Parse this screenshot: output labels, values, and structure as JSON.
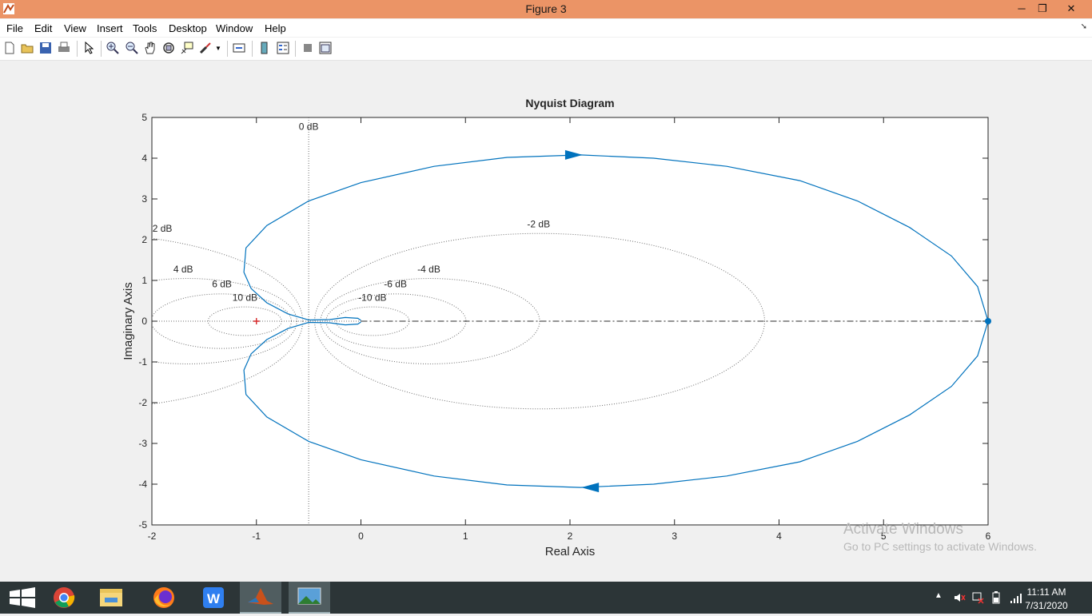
{
  "window": {
    "title": "Figure 3",
    "minimize_glyph": "─",
    "maximize_glyph": "❐",
    "close_glyph": "✕"
  },
  "menu": [
    "File",
    "Edit",
    "View",
    "Insert",
    "Tools",
    "Desktop",
    "Window",
    "Help"
  ],
  "toolbar_icons": [
    "new-figure-icon",
    "open-file-icon",
    "save-icon",
    "print-icon",
    "edit-plot-icon",
    "zoom-in-icon",
    "zoom-out-icon",
    "pan-icon",
    "rotate-3d-icon",
    "data-cursor-icon",
    "brush-icon",
    "link-plot-icon",
    "insert-colorbar-icon",
    "insert-legend-icon",
    "hide-plot-tools-icon",
    "show-plot-tools-icon"
  ],
  "chart_data": {
    "type": "line",
    "title": "Nyquist Diagram",
    "xlabel": "Real Axis",
    "ylabel": "Imaginary Axis",
    "xlim": [
      -2,
      6
    ],
    "ylim": [
      -5,
      5
    ],
    "xticks": [
      -2,
      -1,
      0,
      1,
      2,
      3,
      4,
      5,
      6
    ],
    "yticks": [
      -5,
      -4,
      -3,
      -2,
      -1,
      0,
      1,
      2,
      3,
      4,
      5
    ],
    "grid": "M-circles",
    "critical_point": [
      -1,
      0
    ],
    "series": [
      {
        "color": "#0072bd",
        "points_upper": [
          [
            6,
            0
          ],
          [
            5.9,
            0.85
          ],
          [
            5.65,
            1.6
          ],
          [
            5.25,
            2.3
          ],
          [
            4.75,
            2.95
          ],
          [
            4.2,
            3.45
          ],
          [
            3.5,
            3.8
          ],
          [
            2.8,
            4.0
          ],
          [
            2.1,
            4.08
          ],
          [
            1.4,
            4.02
          ],
          [
            0.7,
            3.8
          ],
          [
            0,
            3.4
          ],
          [
            -0.5,
            2.95
          ],
          [
            -0.9,
            2.35
          ],
          [
            -1.1,
            1.8
          ],
          [
            -1.12,
            1.2
          ],
          [
            -1.05,
            0.8
          ],
          [
            -0.9,
            0.45
          ],
          [
            -0.7,
            0.18
          ],
          [
            -0.5,
            0.03
          ],
          [
            -0.3,
            0.04
          ],
          [
            -0.15,
            0.09
          ],
          [
            -0.03,
            0.07
          ],
          [
            0,
            0.02
          ]
        ],
        "points_lower": [
          [
            6,
            0
          ],
          [
            5.9,
            -0.85
          ],
          [
            5.65,
            -1.6
          ],
          [
            5.25,
            -2.3
          ],
          [
            4.75,
            -2.95
          ],
          [
            4.2,
            -3.45
          ],
          [
            3.5,
            -3.8
          ],
          [
            2.8,
            -4.0
          ],
          [
            2.1,
            -4.08
          ],
          [
            1.4,
            -4.02
          ],
          [
            0.7,
            -3.8
          ],
          [
            0,
            -3.4
          ],
          [
            -0.5,
            -2.95
          ],
          [
            -0.9,
            -2.35
          ],
          [
            -1.1,
            -1.8
          ],
          [
            -1.12,
            -1.2
          ],
          [
            -1.05,
            -0.8
          ],
          [
            -0.9,
            -0.45
          ],
          [
            -0.7,
            -0.18
          ],
          [
            -0.5,
            -0.03
          ],
          [
            -0.3,
            -0.04
          ],
          [
            -0.15,
            -0.09
          ],
          [
            -0.03,
            -0.07
          ],
          [
            0,
            -0.02
          ]
        ]
      }
    ],
    "m_circle_labels": [
      {
        "text": "0 dB",
        "x": -0.5,
        "y": 4.7
      },
      {
        "text": "2 dB",
        "x": -1.9,
        "y": 2.2
      },
      {
        "text": "4 dB",
        "x": -1.7,
        "y": 1.2
      },
      {
        "text": "6 dB",
        "x": -1.33,
        "y": 0.83
      },
      {
        "text": "10 dB",
        "x": -1.11,
        "y": 0.5
      },
      {
        "text": "-2 dB",
        "x": 1.7,
        "y": 2.3
      },
      {
        "text": "-4 dB",
        "x": 0.65,
        "y": 1.2
      },
      {
        "text": "-6 dB",
        "x": 0.33,
        "y": 0.83
      },
      {
        "text": "-10 dB",
        "x": 0.11,
        "y": 0.5
      }
    ],
    "m_circles_db": [
      2,
      4,
      6,
      10,
      -2,
      -4,
      -6,
      -10
    ]
  },
  "watermark": {
    "line1": "Activate Windows",
    "line2": "Go to PC settings to activate Windows."
  },
  "taskbar": {
    "apps": [
      "windows-start-icon",
      "chrome-icon",
      "file-explorer-icon",
      "firefox-icon",
      "wps-writer-icon",
      "matlab-icon",
      "photos-icon"
    ],
    "time": "11:11 AM",
    "date": "7/31/2020"
  }
}
